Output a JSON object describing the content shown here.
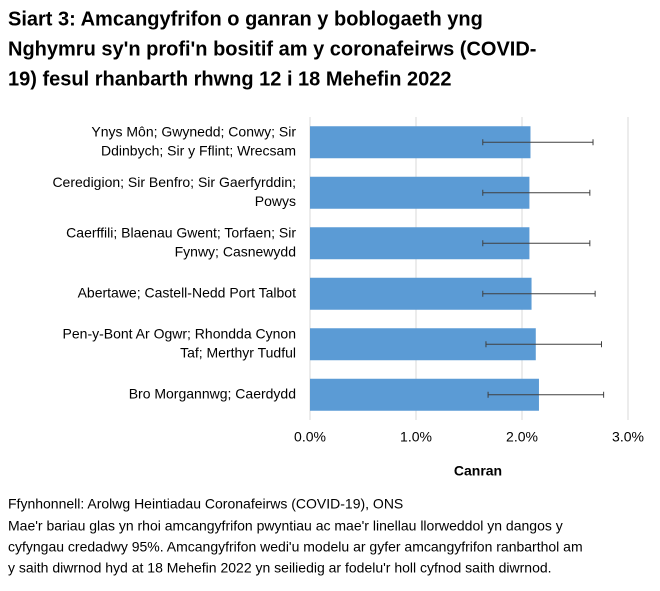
{
  "chart_data": {
    "type": "bar",
    "orientation": "horizontal",
    "title": [
      "Siart 3: Amcangyfrifon o ganran y boblogaeth yng",
      "Nghymru sy'n profi'n bositif am y coronafeirws (COVID-",
      "19) fesul rhanbarth rhwng 12 i 18 Mehefin 2022"
    ],
    "categories": [
      [
        "Ynys Môn; Gwynedd; Conwy; Sir",
        "Ddinbych; Sir y Fflint; Wrecsam"
      ],
      [
        "Ceredigion; Sir Benfro; Sir Gaerfyrddin;",
        "Powys"
      ],
      [
        "Caerffili; Blaenau Gwent; Torfaen; Sir",
        "Fynwy; Casnewydd"
      ],
      [
        "Abertawe; Castell-Nedd Port Talbot"
      ],
      [
        "Pen-y-Bont Ar Ogwr; Rhondda Cynon",
        "Taf; Merthyr Tudful"
      ],
      [
        "Bro Morgannwg; Caerdydd"
      ]
    ],
    "values": [
      2.08,
      2.07,
      2.07,
      2.09,
      2.13,
      2.16
    ],
    "ci_lower": [
      1.63,
      1.63,
      1.63,
      1.63,
      1.66,
      1.68
    ],
    "ci_upper": [
      2.67,
      2.64,
      2.64,
      2.69,
      2.75,
      2.77
    ],
    "color": "#5b9bd5",
    "xlim": [
      0,
      3
    ],
    "xticks": [
      {
        "value": 0,
        "label": "0.0%"
      },
      {
        "value": 1,
        "label": "1.0%"
      },
      {
        "value": 2,
        "label": "2.0%"
      },
      {
        "value": 3,
        "label": "3.0%"
      }
    ],
    "grid": true,
    "xlabel": "Canran",
    "source": "Ffynhonnell: Arolwg Heintiadau Coronafeirws (COVID-19), ONS",
    "notes": [
      "Mae'r bariau glas yn rhoi amcangyfrifon pwyntiau ac mae'r linellau llorweddol yn dangos y",
      "cyfyngau credadwy 95%. Amcangyfrifon wedi'u modelu ar gyfer amcangyfrifon ranbarthol am",
      "y saith diwrnod hyd at 18 Mehefin 2022 yn seiliedig ar fodelu'r holl cyfnod saith diwrnod."
    ]
  }
}
